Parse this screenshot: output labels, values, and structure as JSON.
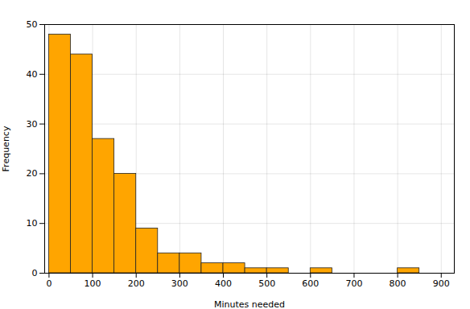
{
  "chart_data": {
    "type": "histogram",
    "xlabel": "Minutes needed",
    "ylabel": "Frequency",
    "bins": [
      0,
      50,
      100,
      150,
      200,
      250,
      300,
      350,
      400,
      450,
      500,
      550,
      600,
      650,
      700,
      750,
      800,
      850
    ],
    "counts": [
      48,
      44,
      27,
      20,
      9,
      4,
      4,
      2,
      2,
      1,
      1,
      0,
      1,
      0,
      0,
      0,
      1
    ],
    "color": "#FFA500",
    "xlim": [
      -10,
      930
    ],
    "xticks": [
      0,
      100,
      200,
      300,
      400,
      500,
      600,
      700,
      800,
      900
    ],
    "ylim": [
      0,
      50
    ],
    "yticks": [
      0,
      10,
      20,
      30,
      40,
      50
    ],
    "grid": true
  }
}
